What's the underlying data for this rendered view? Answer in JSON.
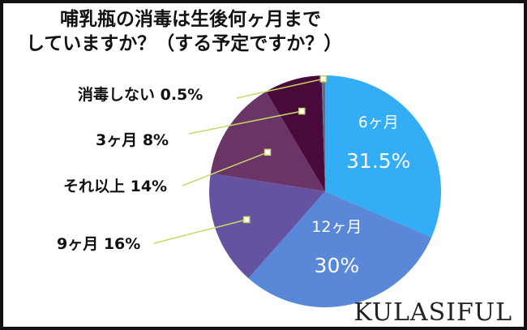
{
  "chart_data": {
    "type": "pie",
    "title_line1": "哺乳瓶の消毒は生後何ヶ月まで",
    "title_line2": "していますか？（する予定ですか？）",
    "slices": [
      {
        "label": "6ヶ月",
        "value": 31.5,
        "percent": "31.5%",
        "color": "#33adf5",
        "label_position": "inside"
      },
      {
        "label": "12ヶ月",
        "value": 30,
        "percent": "30%",
        "color": "#5a88d8",
        "label_position": "inside"
      },
      {
        "label": "9ヶ月",
        "value": 16,
        "percent": "16%",
        "color": "#6553a1",
        "label_position": "outside",
        "callout": "9ヶ月 16%"
      },
      {
        "label": "それ以上",
        "value": 14,
        "percent": "14%",
        "color": "#6a3566",
        "label_position": "outside",
        "callout": "それ以上 14%"
      },
      {
        "label": "3ヶ月",
        "value": 8,
        "percent": "8%",
        "color": "#4a0a39",
        "label_position": "outside",
        "callout": "3ヶ月 8%"
      },
      {
        "label": "消毒しない",
        "value": 0.5,
        "percent": "0.5%",
        "color": "#5e6e8c",
        "label_position": "outside",
        "callout": "消毒しない 0.5%"
      }
    ],
    "start": "12 o'clock",
    "direction": "clockwise",
    "leader_line_color": "#c8d66a"
  },
  "brand": {
    "text": "KULASIFUL"
  }
}
